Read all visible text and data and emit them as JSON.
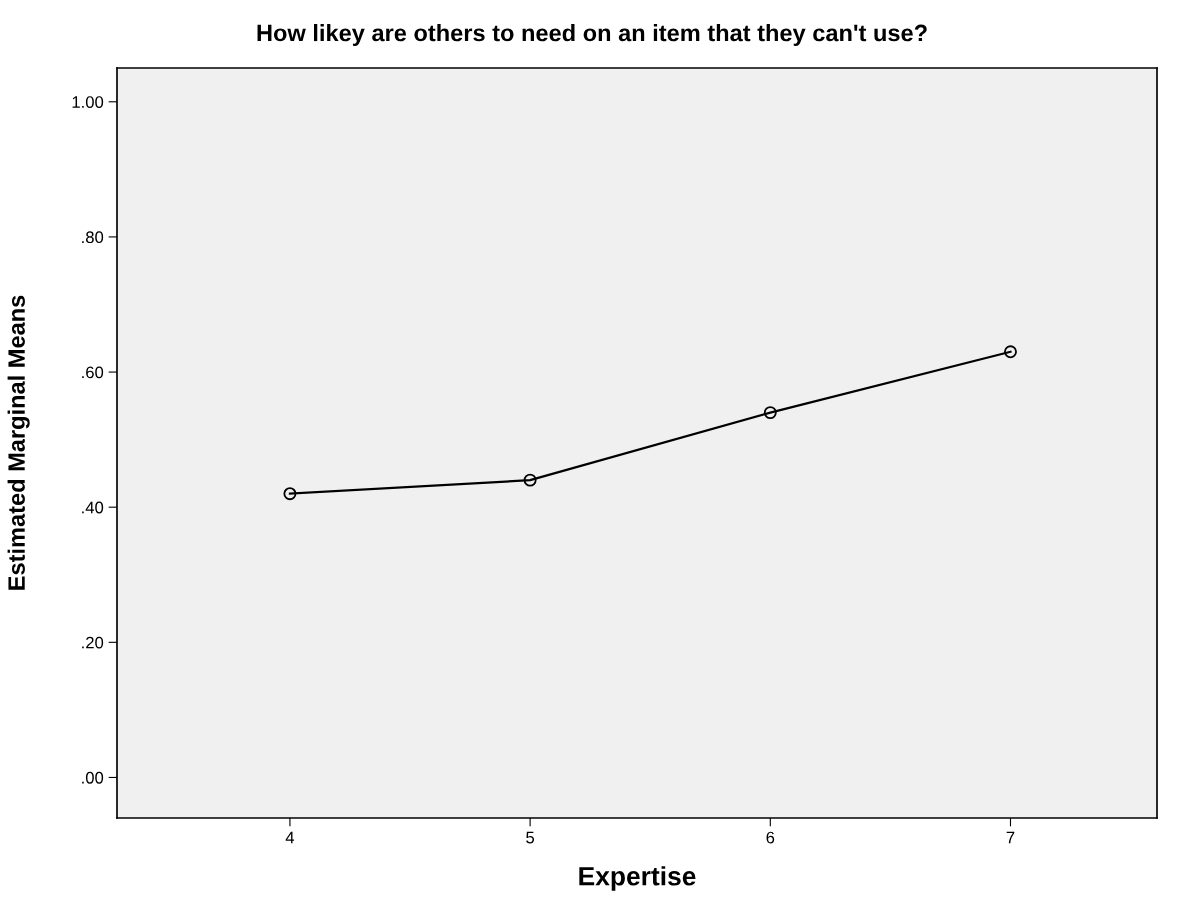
{
  "chart_data": {
    "type": "line",
    "title": "How likey are others to need on an item that they can't use?",
    "xlabel": "Expertise",
    "ylabel": "Estimated Marginal Means",
    "x": [
      4,
      5,
      6,
      7
    ],
    "series": [
      {
        "color": "#000000",
        "values": [
          0.42,
          0.44,
          0.54,
          0.63
        ]
      }
    ],
    "xlim": [
      3.28,
      7.61
    ],
    "xticks": [
      4,
      5,
      6,
      7
    ],
    "ylim": [
      -0.06,
      1.05
    ],
    "yticks": [
      {
        "value": 0,
        "label": ".00"
      },
      {
        "value": 0.2,
        "label": ".20"
      },
      {
        "value": 0.4,
        "label": ".40"
      },
      {
        "value": 0.6,
        "label": ".60"
      },
      {
        "value": 0.8,
        "label": ".80"
      },
      {
        "value": 1.0,
        "label": "1.00"
      }
    ],
    "marker": "circle",
    "line_style": "solid",
    "grid": false
  }
}
